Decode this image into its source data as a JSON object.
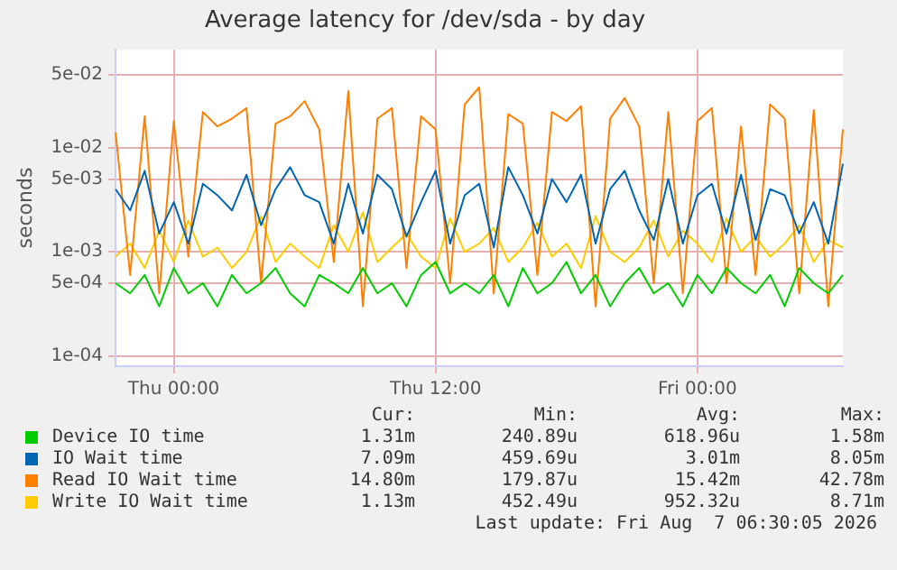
{
  "chart_data": {
    "type": "line",
    "title": "Average latency for /dev/sda - by day",
    "ylabel": "seconds",
    "log": "y",
    "grid": true,
    "legend": "bottom",
    "categories": [
      null,
      null,
      null,
      null,
      "Thu 00:00",
      null,
      null,
      null,
      null,
      null,
      null,
      null,
      null,
      null,
      null,
      null,
      null,
      null,
      null,
      null,
      null,
      null,
      "Thu 12:00",
      null,
      null,
      null,
      null,
      null,
      null,
      null,
      null,
      null,
      null,
      null,
      null,
      null,
      null,
      null,
      null,
      null,
      "Fri 00:00",
      null,
      null,
      null,
      null,
      null,
      null,
      null,
      null,
      null,
      null
    ],
    "ylim": [
      8e-05,
      0.087
    ],
    "yticks": [
      {
        "value": 0.0001,
        "label": "1e-04"
      },
      {
        "value": 0.0005,
        "label": "5e-04"
      },
      {
        "value": 0.001,
        "label": "1e-03"
      },
      {
        "value": 0.005,
        "label": "5e-03"
      },
      {
        "value": 0.01,
        "label": "1e-02"
      },
      {
        "value": 0.05,
        "label": "5e-02"
      }
    ],
    "series": [
      {
        "name": "Device IO time",
        "color": "#00cc00",
        "values": [
          0.0005,
          0.0004,
          0.0006,
          0.0003,
          0.0007,
          0.0004,
          0.0005,
          0.0003,
          0.0006,
          0.0004,
          0.0005,
          0.0007,
          0.0004,
          0.0003,
          0.0006,
          0.0005,
          0.0004,
          0.0007,
          0.0004,
          0.0005,
          0.0003,
          0.0006,
          0.0008,
          0.0004,
          0.0005,
          0.0004,
          0.0006,
          0.0003,
          0.0007,
          0.0004,
          0.0005,
          0.0008,
          0.0004,
          0.0006,
          0.0003,
          0.0005,
          0.0007,
          0.0004,
          0.0005,
          0.0003,
          0.0006,
          0.0004,
          0.0007,
          0.0005,
          0.0004,
          0.0006,
          0.0003,
          0.0007,
          0.0005,
          0.0004,
          0.0006
        ]
      },
      {
        "name": "IO Wait time",
        "color": "#0066b3",
        "values": [
          0.004,
          0.0025,
          0.006,
          0.0015,
          0.003,
          0.0012,
          0.0045,
          0.0035,
          0.0025,
          0.0055,
          0.0018,
          0.004,
          0.0065,
          0.0035,
          0.003,
          0.0012,
          0.0045,
          0.0015,
          0.0055,
          0.004,
          0.0014,
          0.003,
          0.006,
          0.0012,
          0.0035,
          0.0045,
          0.0011,
          0.0065,
          0.0035,
          0.0015,
          0.005,
          0.003,
          0.0055,
          0.0012,
          0.004,
          0.006,
          0.0025,
          0.0013,
          0.005,
          0.0012,
          0.0035,
          0.0045,
          0.0015,
          0.0055,
          0.0013,
          0.004,
          0.0035,
          0.0015,
          0.003,
          0.0012,
          0.007
        ]
      },
      {
        "name": "Read IO Wait time",
        "color": "#ff8000",
        "values": [
          0.014,
          0.0006,
          0.02,
          0.0004,
          0.018,
          0.0009,
          0.022,
          0.016,
          0.019,
          0.024,
          0.0005,
          0.017,
          0.02,
          0.028,
          0.015,
          0.0008,
          0.035,
          0.0003,
          0.019,
          0.024,
          0.0007,
          0.02,
          0.015,
          0.0005,
          0.026,
          0.038,
          0.0004,
          0.021,
          0.017,
          0.0006,
          0.022,
          0.018,
          0.025,
          0.0003,
          0.019,
          0.03,
          0.016,
          0.0005,
          0.022,
          0.0004,
          0.018,
          0.024,
          0.0005,
          0.016,
          0.0006,
          0.026,
          0.019,
          0.0004,
          0.023,
          0.0003,
          0.015
        ]
      },
      {
        "name": "Write IO Wait time",
        "color": "#ffcc00",
        "values": [
          0.0009,
          0.0012,
          0.0007,
          0.0016,
          0.0008,
          0.002,
          0.0009,
          0.0011,
          0.0007,
          0.001,
          0.0022,
          0.0008,
          0.0012,
          0.0009,
          0.0007,
          0.0018,
          0.001,
          0.0024,
          0.0008,
          0.0011,
          0.0015,
          0.0009,
          0.0007,
          0.0021,
          0.001,
          0.0012,
          0.0017,
          0.0008,
          0.0011,
          0.0019,
          0.0009,
          0.0012,
          0.0007,
          0.0022,
          0.001,
          0.0008,
          0.0011,
          0.002,
          0.0009,
          0.0016,
          0.0012,
          0.0008,
          0.0021,
          0.001,
          0.0014,
          0.0009,
          0.0012,
          0.0018,
          0.0008,
          0.0013,
          0.0011
        ]
      }
    ],
    "annotations": [
      "Cur:",
      "Min:",
      "Avg:",
      "Max:",
      "1.31m",
      "240.89u",
      "618.96u",
      "1.58m",
      "7.09m",
      "459.69u",
      "3.01m",
      "8.05m",
      "14.80m",
      "179.87u",
      "15.42m",
      "42.78m",
      "1.13m",
      "452.49u",
      "952.32u",
      "8.71m",
      "Last update: Fri Aug  7 06:30:05 2026"
    ]
  }
}
